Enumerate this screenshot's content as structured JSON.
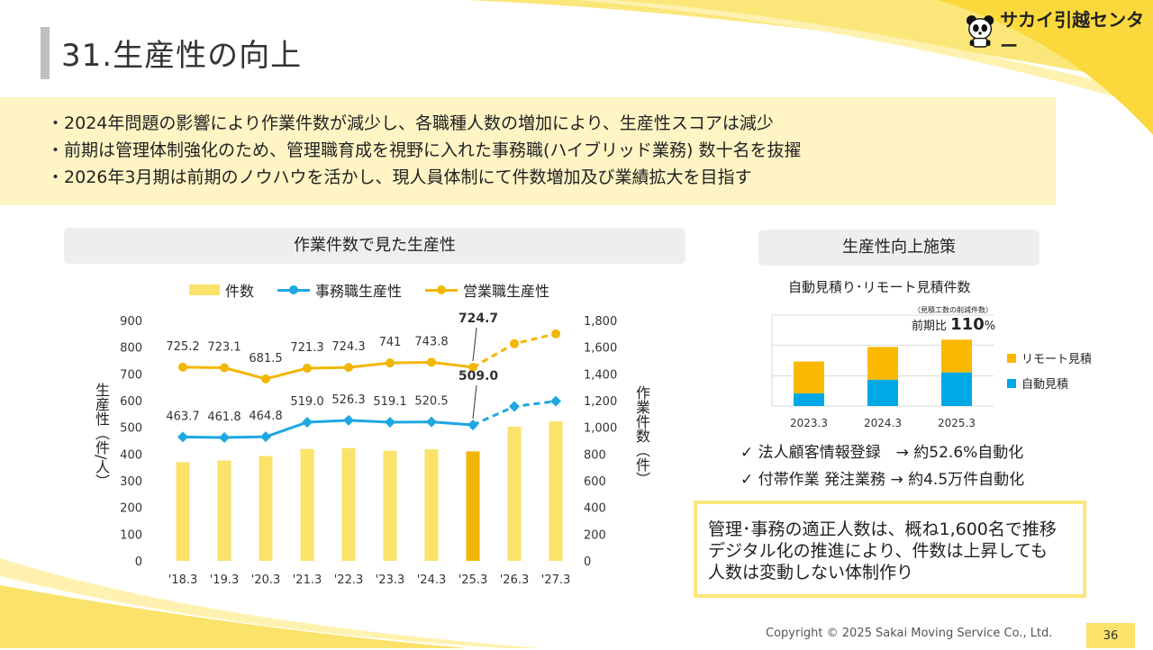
{
  "slide": {
    "title": "31.生産性の向上",
    "logo_text": "サカイ引越センター",
    "bullets": [
      "2024年問題の影響により作業件数が減少し、各職種人数の増加により、生産性スコアは減少",
      "前期は管理体制強化のため、管理職育成を視野に入れた事務職(ハイブリッド業務) 数十名を抜擢",
      "2026年3月期は前期のノウハウを活かし、現人員体制にて件数増加及び業績拡大を目指す"
    ],
    "copyright": "Copyright © 2025 Sakai Moving Service Co., Ltd.",
    "page_number": "36"
  },
  "colors": {
    "accent_yellow": "#fbe26a",
    "highlight_bar": "#f2b705",
    "admin_line": "#1ea7e1",
    "sales_line": "#f2b705",
    "remote_est": "#fbb800",
    "auto_est": "#00a9e6"
  },
  "left_panel": {
    "header": "作業件数で見た生産性",
    "ylabel_left": "生産性（件/人）",
    "ylabel_right": "作業件数（件）"
  },
  "right_panel": {
    "header": "生産性向上施策",
    "chart_title": "自動見積り･リモート見積件数",
    "note": "（見積工数の削減件数）",
    "ratio_label": "前期比",
    "ratio_value": "110",
    "ratio_unit": "%",
    "checks": [
      "✓  法人顧客情報登録　→  約52.6%自動化",
      "✓  付帯作業 発注業務  →  約4.5万件自動化"
    ],
    "summary": [
      "管理･事務の適正人数は、概ね1,600名で推移",
      "デジタル化の推進により、件数は上昇しても",
      "人数は変動しない体制作り"
    ]
  },
  "chart_data": [
    {
      "type": "bar",
      "title": "",
      "categories": [
        "'18.3",
        "'19.3",
        "'20.3",
        "'21.3",
        "'22.3",
        "'23.3",
        "'24.3",
        "'25.3",
        "'26.3",
        "'27.3"
      ],
      "ylim_left": [
        0,
        900
      ],
      "ylim_right": [
        0,
        1800
      ],
      "yticks_left": [
        "0",
        "100",
        "200",
        "300",
        "400",
        "500",
        "600",
        "700",
        "800",
        "900"
      ],
      "yticks_right": [
        "0",
        "200",
        "400",
        "600",
        "800",
        "1,000",
        "1,200",
        "1,400",
        "1,600",
        "1,800"
      ],
      "highlight_index": 7,
      "forecast_from_index": 7,
      "series": [
        {
          "name": "件数",
          "kind": "bar",
          "axis": "right",
          "values": [
            740,
            752,
            785,
            838,
            845,
            825,
            835,
            820,
            1005,
            1045
          ]
        },
        {
          "name": "事務職生産性",
          "kind": "line",
          "axis": "left",
          "values": [
            463.7,
            461.8,
            464.8,
            519.0,
            526.3,
            519.1,
            520.5,
            509.0,
            578,
            598
          ],
          "labels": [
            "463.7",
            "461.8",
            "464.8",
            "519.0",
            "526.3",
            "519.1",
            "520.5",
            "509.0",
            "",
            ""
          ]
        },
        {
          "name": "営業職生産性",
          "kind": "line",
          "axis": "left",
          "values": [
            725.2,
            723.1,
            681.5,
            721.3,
            724.3,
            741,
            743.8,
            724.7,
            813,
            850
          ],
          "labels": [
            "725.2",
            "723.1",
            "681.5",
            "721.3",
            "724.3",
            "741",
            "743.8",
            "724.7",
            "",
            ""
          ]
        }
      ],
      "grid": false,
      "legend": "top"
    },
    {
      "type": "bar",
      "stacked": true,
      "title": "自動見積り･リモート見積件数",
      "categories": [
        "2023.3",
        "2024.3",
        "2025.3"
      ],
      "series": [
        {
          "name": "自動見積",
          "values": [
            14,
            29,
            37
          ]
        },
        {
          "name": "リモート見積",
          "values": [
            35,
            36,
            36
          ]
        }
      ],
      "ylim": [
        0,
        100
      ],
      "grid": true,
      "legend": "right"
    }
  ]
}
